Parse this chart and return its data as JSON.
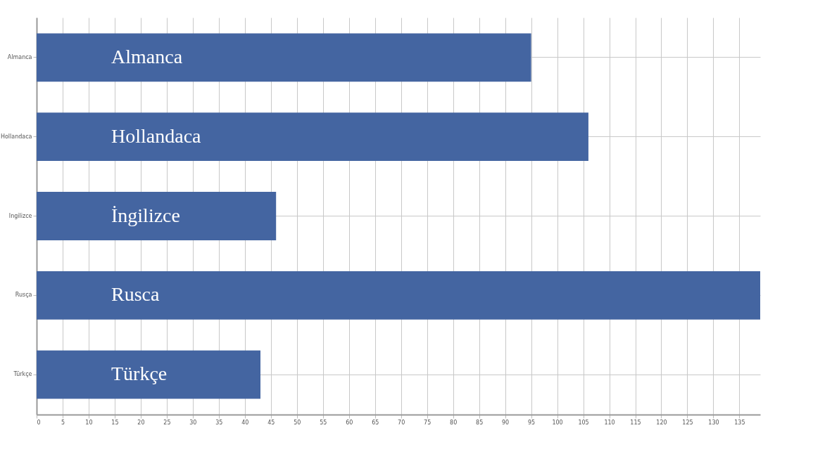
{
  "chart_data": {
    "type": "bar",
    "orientation": "horizontal",
    "categories": [
      "Almanca",
      "Hollandaca",
      "Ingilizce",
      "Rusça",
      "Türkçe"
    ],
    "values": [
      95,
      106,
      46,
      139,
      43
    ],
    "color": "#4465a1",
    "xlim": [
      0,
      139
    ],
    "xticks": [
      0,
      5,
      10,
      15,
      20,
      25,
      30,
      35,
      40,
      45,
      50,
      55,
      60,
      65,
      70,
      75,
      80,
      85,
      90,
      95,
      100,
      105,
      110,
      115,
      120,
      125,
      130,
      135
    ],
    "grid": true,
    "annotations": [
      "Almanca",
      "Hollandaca",
      "İngilizce",
      "Rusca",
      "Türkçe"
    ]
  }
}
